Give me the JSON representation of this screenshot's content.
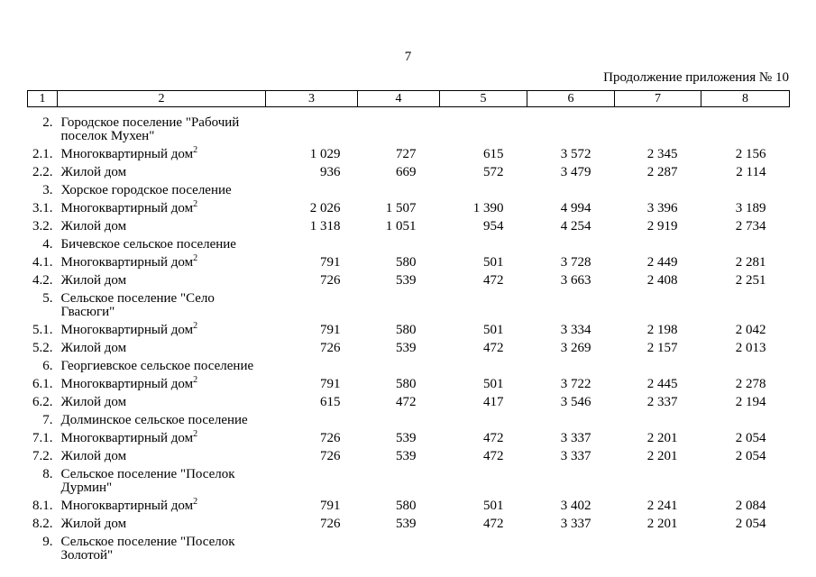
{
  "page": {
    "number": "7",
    "continuation": "Продолжение приложения № 10"
  },
  "table": {
    "header_cols": [
      "1",
      "2",
      "3",
      "4",
      "5",
      "6",
      "7",
      "8"
    ],
    "rows": [
      {
        "num": "2.",
        "lines": [
          "Городское поселение \"Рабочий",
          "поселок Мухен\""
        ],
        "values": [
          "",
          "",
          "",
          "",
          "",
          ""
        ]
      },
      {
        "num": "2.1.",
        "lines": [
          "Многоквартирный дом"
        ],
        "sup": "2",
        "values": [
          "1 029",
          "727",
          "615",
          "3 572",
          "2 345",
          "2 156"
        ]
      },
      {
        "num": "2.2.",
        "lines": [
          "Жилой дом"
        ],
        "values": [
          "936",
          "669",
          "572",
          "3 479",
          "2 287",
          "2 114"
        ]
      },
      {
        "num": "3.",
        "lines": [
          "Хорское городское поселение"
        ],
        "values": [
          "",
          "",
          "",
          "",
          "",
          ""
        ]
      },
      {
        "num": "3.1.",
        "lines": [
          "Многоквартирный дом"
        ],
        "sup": "2",
        "values": [
          "2 026",
          "1 507",
          "1 390",
          "4 994",
          "3 396",
          "3 189"
        ]
      },
      {
        "num": "3.2.",
        "lines": [
          "Жилой дом"
        ],
        "values": [
          "1 318",
          "1 051",
          "954",
          "4 254",
          "2 919",
          "2 734"
        ]
      },
      {
        "num": "4.",
        "lines": [
          "Бичевское сельское поселение"
        ],
        "values": [
          "",
          "",
          "",
          "",
          "",
          ""
        ]
      },
      {
        "num": "4.1.",
        "lines": [
          "Многоквартирный дом"
        ],
        "sup": "2",
        "values": [
          "791",
          "580",
          "501",
          "3 728",
          "2 449",
          "2 281"
        ]
      },
      {
        "num": "4.2.",
        "lines": [
          "Жилой дом"
        ],
        "values": [
          "726",
          "539",
          "472",
          "3 663",
          "2 408",
          "2 251"
        ]
      },
      {
        "num": "5.",
        "lines": [
          "Сельское поселение \"Село",
          "Гвасюги\""
        ],
        "values": [
          "",
          "",
          "",
          "",
          "",
          ""
        ]
      },
      {
        "num": "5.1.",
        "lines": [
          "Многоквартирный дом"
        ],
        "sup": "2",
        "values": [
          "791",
          "580",
          "501",
          "3 334",
          "2 198",
          "2 042"
        ]
      },
      {
        "num": "5.2.",
        "lines": [
          "Жилой дом"
        ],
        "values": [
          "726",
          "539",
          "472",
          "3 269",
          "2 157",
          "2 013"
        ]
      },
      {
        "num": "6.",
        "lines": [
          "Георгиевское сельское поселение"
        ],
        "values": [
          "",
          "",
          "",
          "",
          "",
          ""
        ]
      },
      {
        "num": "6.1.",
        "lines": [
          "Многоквартирный дом"
        ],
        "sup": "2",
        "values": [
          "791",
          "580",
          "501",
          "3 722",
          "2 445",
          "2 278"
        ]
      },
      {
        "num": "6.2.",
        "lines": [
          "Жилой дом"
        ],
        "values": [
          "615",
          "472",
          "417",
          "3 546",
          "2 337",
          "2 194"
        ]
      },
      {
        "num": "7.",
        "lines": [
          "Долминское сельское поселение"
        ],
        "values": [
          "",
          "",
          "",
          "",
          "",
          ""
        ]
      },
      {
        "num": "7.1.",
        "lines": [
          "Многоквартирный дом"
        ],
        "sup": "2",
        "values": [
          "726",
          "539",
          "472",
          "3 337",
          "2 201",
          "2 054"
        ]
      },
      {
        "num": "7.2.",
        "lines": [
          "Жилой дом"
        ],
        "values": [
          "726",
          "539",
          "472",
          "3 337",
          "2 201",
          "2 054"
        ]
      },
      {
        "num": "8.",
        "lines": [
          "Сельское поселение \"Поселок",
          "Дурмин\""
        ],
        "values": [
          "",
          "",
          "",
          "",
          "",
          ""
        ]
      },
      {
        "num": "8.1.",
        "lines": [
          "Многоквартирный дом"
        ],
        "sup": "2",
        "values": [
          "791",
          "580",
          "501",
          "3 402",
          "2 241",
          "2 084"
        ]
      },
      {
        "num": "8.2.",
        "lines": [
          "Жилой дом"
        ],
        "values": [
          "726",
          "539",
          "472",
          "3 337",
          "2 201",
          "2 054"
        ]
      },
      {
        "num": "9.",
        "lines": [
          "Сельское поселение \"Поселок",
          "Золотой\""
        ],
        "values": [
          "",
          "",
          "",
          "",
          "",
          ""
        ]
      }
    ]
  }
}
